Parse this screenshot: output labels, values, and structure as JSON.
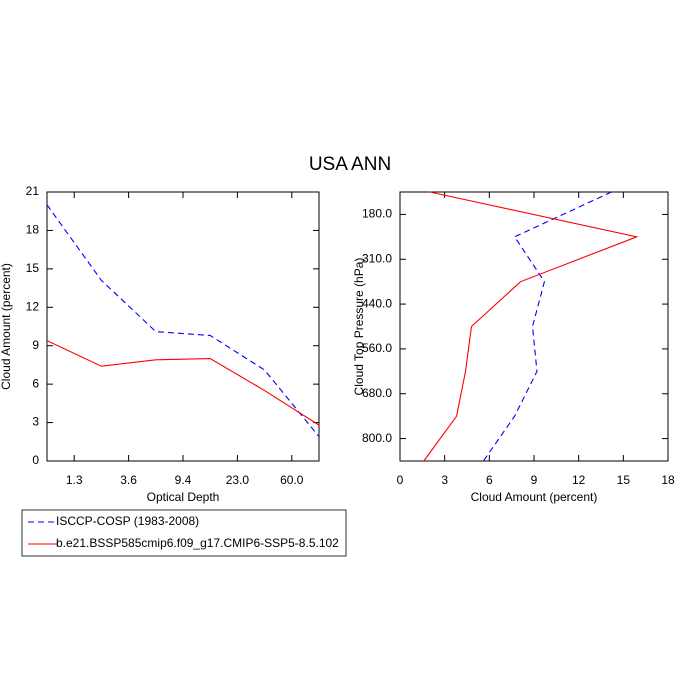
{
  "title": "USA ANN",
  "chart_data": [
    {
      "type": "line",
      "orientation": "vertical",
      "x_label": "Optical Depth",
      "y_label": "Cloud Amount (percent)",
      "x": [
        0,
        1,
        2,
        3,
        4,
        5
      ],
      "xlim": [
        0,
        5
      ],
      "xticks": [
        {
          "value": 0.5,
          "label": "1.3"
        },
        {
          "value": 1.5,
          "label": "3.6"
        },
        {
          "value": 2.5,
          "label": "9.4"
        },
        {
          "value": 3.5,
          "label": "23.0"
        },
        {
          "value": 4.5,
          "label": "60.0"
        }
      ],
      "ylim": [
        0,
        21
      ],
      "yticks": [
        0,
        3,
        6,
        9,
        12,
        15,
        18,
        21
      ],
      "series": [
        {
          "name": "ISCCP-COSP (1983-2008)",
          "color": "#0000ff",
          "style": "dashed",
          "values": [
            20.0,
            14.1,
            10.1,
            9.8,
            7.1,
            1.9
          ]
        },
        {
          "name": "b.e21.BSSP585cmip6.f09_g17.CMIP6-SSP5-8.5.102",
          "color": "#ff0000",
          "style": "solid",
          "values": [
            9.4,
            7.4,
            7.9,
            8.0,
            5.5,
            2.8
          ]
        }
      ]
    },
    {
      "type": "line",
      "orientation": "horizontal",
      "x_label": "Cloud Amount (percent)",
      "y_label": "Cloud Top Pressure (hPa)",
      "y": [
        0,
        1,
        2,
        3,
        4,
        5,
        6
      ],
      "ylim": [
        0,
        6
      ],
      "y_reversed": true,
      "yticks": [
        {
          "value": 0.5,
          "label": "180.0"
        },
        {
          "value": 1.5,
          "label": "310.0"
        },
        {
          "value": 2.5,
          "label": "440.0"
        },
        {
          "value": 3.5,
          "label": "560.0"
        },
        {
          "value": 4.5,
          "label": "680.0"
        },
        {
          "value": 5.5,
          "label": "800.0"
        }
      ],
      "xlim": [
        0,
        18
      ],
      "xticks": [
        0,
        3,
        6,
        9,
        12,
        15,
        18
      ],
      "series": [
        {
          "name": "ISCCP-COSP (1983-2008)",
          "color": "#0000ff",
          "style": "dashed",
          "values": [
            14.2,
            7.7,
            9.7,
            8.9,
            9.2,
            7.7,
            5.6
          ]
        },
        {
          "name": "b.e21.BSSP585cmip6.f09_g17.CMIP6-SSP5-8.5.102",
          "color": "#ff0000",
          "style": "solid",
          "values": [
            2.0,
            15.9,
            8.1,
            4.8,
            4.4,
            3.8,
            1.6
          ]
        }
      ]
    }
  ]
}
